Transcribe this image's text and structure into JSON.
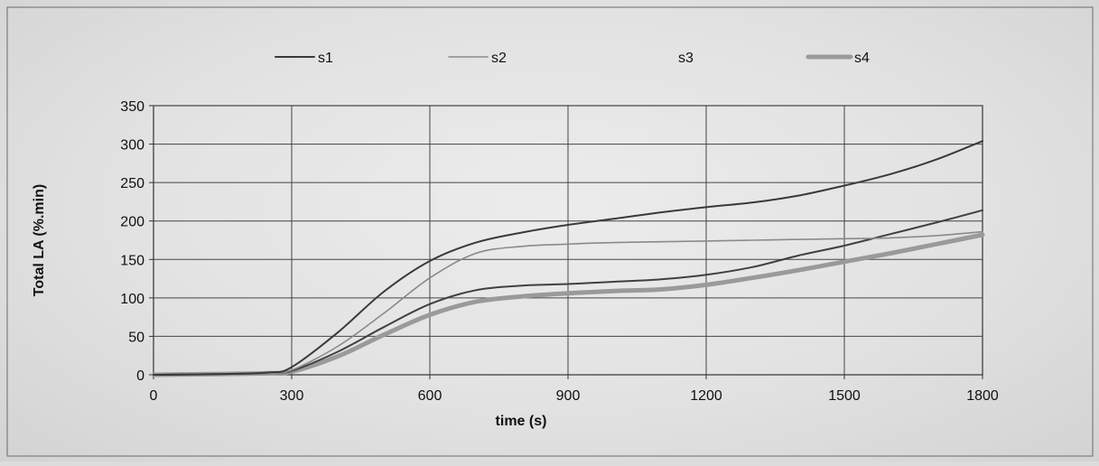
{
  "chart_data": {
    "type": "line",
    "title": "",
    "xlabel": "time (s)",
    "ylabel": "Total LA (%.min)",
    "xlim": [
      0,
      1800
    ],
    "ylim": [
      0,
      350
    ],
    "x_ticks": [
      0,
      300,
      600,
      900,
      1200,
      1500,
      1800
    ],
    "y_ticks": [
      0,
      50,
      100,
      150,
      200,
      250,
      300,
      350
    ],
    "grid": true,
    "legend_position": "top",
    "series": [
      {
        "name": "s1",
        "color": "#3a3a3a",
        "style": "solid-dark",
        "x": [
          0,
          150,
          250,
          300,
          400,
          500,
          600,
          700,
          800,
          900,
          1000,
          1100,
          1200,
          1300,
          1400,
          1500,
          1600,
          1700,
          1800
        ],
        "y": [
          0,
          1,
          3,
          10,
          55,
          108,
          148,
          172,
          185,
          195,
          203,
          211,
          218,
          224,
          233,
          246,
          261,
          280,
          304
        ]
      },
      {
        "name": "s2",
        "color": "#8a8a8a",
        "style": "thin-gray",
        "x": [
          0,
          150,
          250,
          300,
          400,
          500,
          600,
          700,
          800,
          900,
          1000,
          1100,
          1200,
          1300,
          1400,
          1500,
          1600,
          1700,
          1800
        ],
        "y": [
          0,
          1,
          2,
          6,
          37,
          80,
          126,
          158,
          167,
          170,
          172,
          173,
          174,
          175,
          176,
          177,
          178,
          181,
          186
        ]
      },
      {
        "name": "s3",
        "color": "#404040",
        "style": "solid-dark",
        "x": [
          0,
          150,
          250,
          300,
          400,
          500,
          600,
          700,
          800,
          900,
          1000,
          1100,
          1200,
          1300,
          1400,
          1500,
          1600,
          1700,
          1800
        ],
        "y": [
          0,
          1,
          2,
          5,
          30,
          62,
          92,
          110,
          116,
          118,
          121,
          124,
          130,
          140,
          155,
          168,
          183,
          198,
          214
        ]
      },
      {
        "name": "s4",
        "color": "#9a9a9a",
        "style": "thick-gray",
        "x": [
          0,
          150,
          250,
          300,
          400,
          500,
          600,
          700,
          800,
          900,
          1000,
          1100,
          1200,
          1300,
          1400,
          1500,
          1600,
          1700,
          1800
        ],
        "y": [
          0,
          1,
          2,
          4,
          24,
          52,
          78,
          95,
          102,
          106,
          109,
          111,
          117,
          126,
          136,
          147,
          158,
          170,
          182
        ]
      }
    ]
  }
}
